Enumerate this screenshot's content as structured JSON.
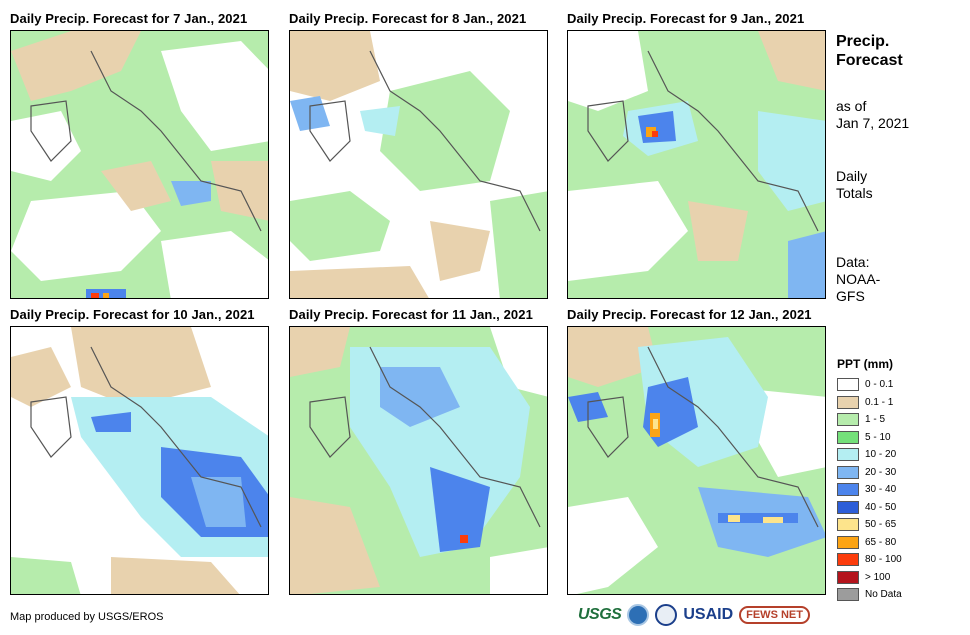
{
  "panels": [
    {
      "title": "Daily Precip. Forecast for 7 Jan., 2021"
    },
    {
      "title": "Daily Precip. Forecast for 8 Jan., 2021"
    },
    {
      "title": "Daily Precip. Forecast for 9 Jan., 2021"
    },
    {
      "title": "Daily Precip. Forecast for 10 Jan., 2021"
    },
    {
      "title": "Daily Precip. Forecast for 11 Jan., 2021"
    },
    {
      "title": "Daily Precip. Forecast for 12 Jan., 2021"
    }
  ],
  "side": {
    "title_line1": "Precip.",
    "title_line2": "Forecast",
    "asof_line1": "as of",
    "asof_line2": "Jan 7, 2021",
    "totals_line1": "Daily",
    "totals_line2": "Totals",
    "source_line1": "Data:",
    "source_line2": "NOAA-",
    "source_line3": "GFS"
  },
  "legend": {
    "title": "PPT (mm)",
    "items": [
      {
        "label": "0 - 0.1",
        "color": "#ffffff"
      },
      {
        "label": "0.1 - 1",
        "color": "#e8d2ae"
      },
      {
        "label": "1 - 5",
        "color": "#b6ecac"
      },
      {
        "label": "5 - 10",
        "color": "#74e07a"
      },
      {
        "label": "10 - 20",
        "color": "#b4eef2"
      },
      {
        "label": "20 - 30",
        "color": "#7fb6f2"
      },
      {
        "label": "30 - 40",
        "color": "#4c84ec"
      },
      {
        "label": "40 - 50",
        "color": "#2d5ed8"
      },
      {
        "label": "50 - 65",
        "color": "#fde48c"
      },
      {
        "label": "65 - 80",
        "color": "#fca414"
      },
      {
        "label": "80 - 100",
        "color": "#fc3c0c"
      },
      {
        "label": "> 100",
        "color": "#b4141c"
      },
      {
        "label": "No Data",
        "color": "#9c9c9c"
      }
    ]
  },
  "footer": {
    "credit": "Map produced by USGS/EROS",
    "logo_usgs": "USGS",
    "logo_usaid": "USAID",
    "logo_fews": "FEWS NET"
  }
}
